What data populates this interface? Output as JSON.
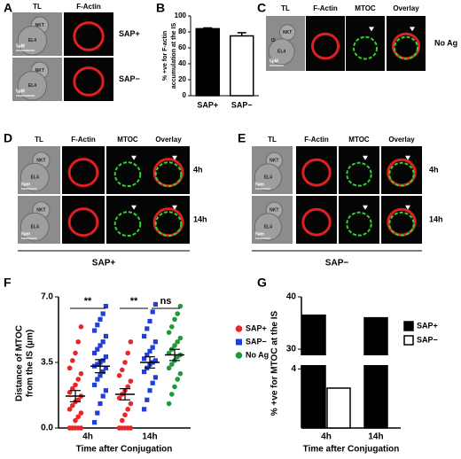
{
  "panels": {
    "A": {
      "letter": "A",
      "columns": [
        "TL",
        "F-Actin"
      ],
      "rows": [
        "SAP+",
        "SAP−"
      ],
      "scale": "5µM"
    },
    "C": {
      "letter": "C",
      "columns": [
        "TL",
        "F-Actin",
        "MTOC",
        "Overlay"
      ],
      "rows": [
        "No Ag"
      ],
      "scale": "5µM",
      "synapse": "IS"
    },
    "D": {
      "letter": "D",
      "columns": [
        "TL",
        "F-Actin",
        "MTOC",
        "Overlay"
      ],
      "rows": [
        "4h",
        "14h"
      ],
      "group": "SAP+",
      "scale": "5µm"
    },
    "E": {
      "letter": "E",
      "columns": [
        "TL",
        "F-Actin",
        "MTOC",
        "Overlay"
      ],
      "rows": [
        "4h",
        "14h"
      ],
      "group": "SAP−",
      "scale": "5µm"
    },
    "cells": [
      "NKT",
      "EL4"
    ]
  },
  "chart_data": [
    {
      "letter": "B",
      "type": "bar",
      "ylabel": [
        "% +ve for F-actin",
        "accumulation at the IS"
      ],
      "categories": [
        "SAP+",
        "SAP−"
      ],
      "values": [
        84,
        75
      ],
      "errors": [
        1,
        4
      ],
      "colors": [
        "#000000",
        "#ffffff"
      ],
      "ylim": [
        0,
        100
      ],
      "yticks": [
        0,
        20,
        40,
        60,
        80,
        100
      ]
    },
    {
      "letter": "F",
      "type": "strip",
      "ylabel": [
        "Distance  of MTOC",
        "from the IS (µm)"
      ],
      "xlabel": "Time after Conjugation",
      "categories": [
        "4h",
        "14h"
      ],
      "ylim": [
        0,
        7
      ],
      "yticks": [
        {
          "value": 0,
          "label": "0.0"
        },
        {
          "value": 3.5,
          "label": "3.5"
        },
        {
          "value": 7,
          "label": "7.0"
        }
      ],
      "annotations": [
        "**",
        "**",
        "ns"
      ],
      "series": [
        {
          "name": "SAP+",
          "color": "#e8262a",
          "marker": "circle",
          "values": [
            [
              0,
              0,
              0,
              0,
              0,
              0,
              0,
              0.4,
              0.6,
              0.8,
              1.0,
              1.2,
              1.4,
              1.5,
              1.7,
              1.9,
              2.1,
              2.3,
              2.6,
              2.9,
              3.2,
              3.6,
              4.0,
              4.6,
              5.4
            ],
            [
              0,
              0,
              0,
              0,
              0,
              0,
              0.4,
              0.7,
              1.0,
              1.3,
              1.6,
              1.8,
              2.0,
              2.2,
              2.5,
              2.8,
              3.1,
              3.5,
              4.0,
              4.6
            ]
          ],
          "mean": [
            1.7,
            1.8
          ],
          "sem": [
            0.3,
            0.3
          ]
        },
        {
          "name": "SAP−",
          "color": "#1f3fd8",
          "marker": "square",
          "values": [
            [
              0.3,
              0.8,
              1.3,
              1.7,
              2.0,
              2.3,
              2.6,
              2.8,
              3.0,
              3.2,
              3.3,
              3.4,
              3.5,
              3.6,
              3.8,
              4.0,
              4.2,
              4.4,
              4.6,
              4.9,
              5.2,
              5.5,
              5.8,
              6.1,
              6.5
            ],
            [
              1.0,
              1.5,
              2.0,
              2.4,
              2.7,
              3.0,
              3.2,
              3.4,
              3.5,
              3.6,
              3.7,
              3.9,
              4.1,
              4.3,
              4.6,
              4.9,
              5.3,
              5.7,
              6.2,
              6.6
            ]
          ],
          "mean": [
            3.3,
            3.5
          ],
          "sem": [
            0.35,
            0.3
          ]
        },
        {
          "name": "No Ag",
          "color": "#1e9a3a",
          "marker": "circle",
          "values": [
            null,
            [
              1.3,
              1.8,
              2.2,
              2.6,
              2.9,
              3.2,
              3.4,
              3.6,
              3.8,
              3.9,
              4.0,
              4.2,
              4.4,
              4.6,
              4.8,
              5.1,
              5.4,
              5.8,
              6.1,
              6.5
            ]
          ],
          "mean": [
            null,
            3.9
          ],
          "sem": [
            null,
            0.3
          ]
        }
      ]
    },
    {
      "letter": "G",
      "type": "broken-bar",
      "ylabel": "% +ve for MTOC at the IS",
      "xlabel": "Time after Conjugation",
      "categories": [
        "4h",
        "14h"
      ],
      "series": [
        {
          "name": "SAP+",
          "color": "#000000",
          "values": [
            36.5,
            36
          ]
        },
        {
          "name": "SAP−",
          "color": "#ffffff",
          "values": [
            2.7,
            null
          ]
        }
      ],
      "ylim": [
        0,
        40
      ],
      "yticks": [
        4,
        30,
        40
      ],
      "axis_break": [
        4.2,
        29
      ]
    }
  ]
}
